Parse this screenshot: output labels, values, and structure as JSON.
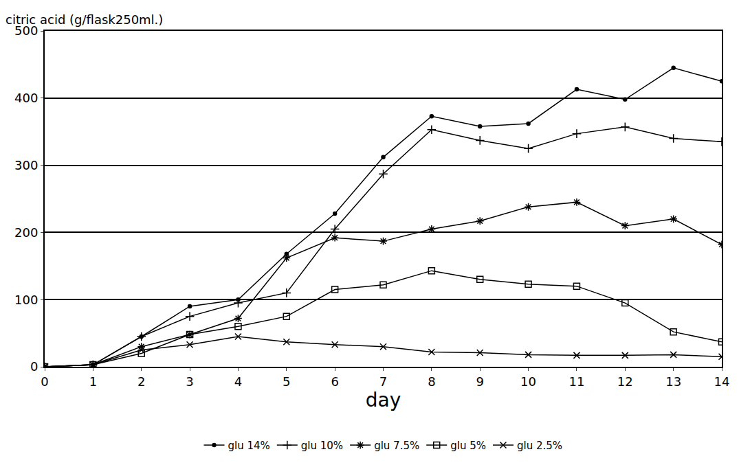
{
  "chart_data": {
    "type": "line",
    "y_label": "citric acid (g/flask250ml.)",
    "x_label": "day",
    "x": [
      0,
      1,
      2,
      3,
      4,
      5,
      6,
      7,
      8,
      9,
      10,
      11,
      12,
      13,
      14
    ],
    "series": [
      {
        "name": "glu 14%",
        "color": "#000000",
        "marker": "dot",
        "line_style": "solid",
        "values": [
          0,
          3,
          45,
          90,
          100,
          168,
          228,
          312,
          373,
          358,
          362,
          413,
          398,
          445,
          425
        ]
      },
      {
        "name": "glu 10%",
        "color": "#000000",
        "marker": "plus",
        "line_style": "solid",
        "values": [
          0,
          3,
          45,
          75,
          95,
          110,
          205,
          287,
          353,
          337,
          325,
          347,
          357,
          340,
          335
        ]
      },
      {
        "name": "glu 7.5%",
        "color": "#000000",
        "marker": "asterisk",
        "line_style": "solid",
        "values": [
          0,
          3,
          30,
          48,
          72,
          162,
          192,
          187,
          205,
          217,
          238,
          245,
          210,
          220,
          182
        ]
      },
      {
        "name": "glu 5%",
        "color": "#000000",
        "marker": "square",
        "line_style": "solid",
        "values": [
          0,
          3,
          20,
          48,
          60,
          75,
          115,
          122,
          143,
          130,
          123,
          120,
          95,
          52,
          37
        ]
      },
      {
        "name": "glu 2.5%",
        "color": "#000000",
        "marker": "x",
        "line_style": "solid",
        "values": [
          0,
          3,
          25,
          33,
          45,
          37,
          33,
          30,
          22,
          21,
          18,
          17,
          17,
          18,
          15
        ]
      }
    ],
    "xlim": [
      0,
      14
    ],
    "xticks": [
      0,
      1,
      2,
      3,
      4,
      5,
      6,
      7,
      8,
      9,
      10,
      11,
      12,
      13,
      14
    ],
    "ylim": [
      0,
      500
    ],
    "yticks": [
      0,
      100,
      200,
      300,
      400,
      500
    ],
    "grid": true,
    "legend": "bottom"
  }
}
